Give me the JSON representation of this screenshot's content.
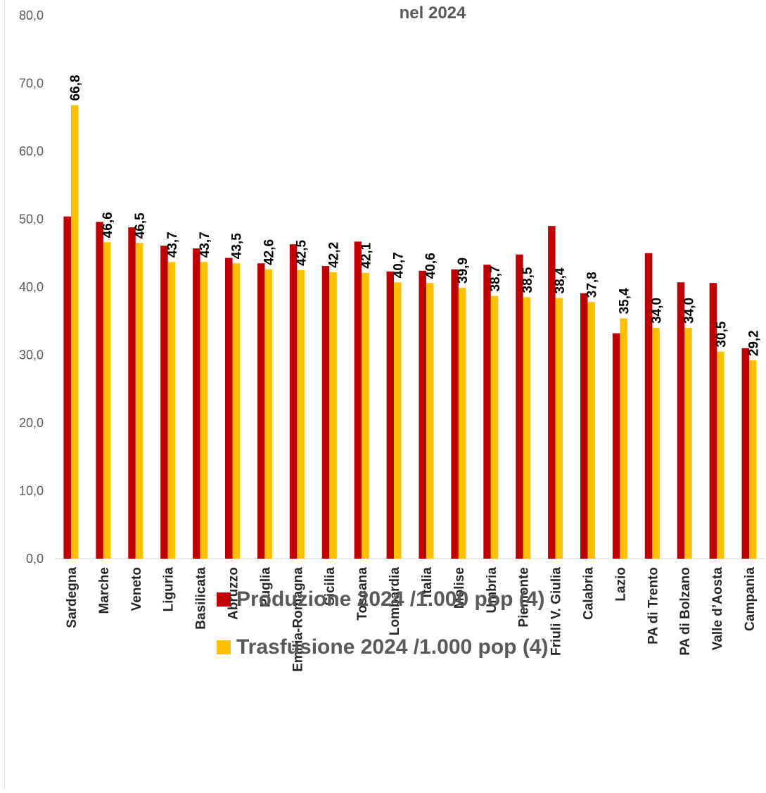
{
  "chart_data": {
    "type": "bar",
    "title": "nel 2024",
    "categories": [
      "Sardegna",
      "Marche",
      "Veneto",
      "Liguria",
      "Basilicata",
      "Abruzzo",
      "Puglia",
      "Emilia-Romagna",
      "Sicilia",
      "Toscana",
      "Lombardia",
      "Italia",
      "Molise",
      "Umbria",
      "Piemonte",
      "Friuli V. Giulia",
      "Calabria",
      "Lazio",
      "PA di Trento",
      "PA di Bolzano",
      "Valle d’Aosta",
      "Campania"
    ],
    "series": [
      {
        "name": "Produzione 2024 /1.000 pop (4)",
        "color": "#c00000",
        "values": [
          50.4,
          49.6,
          48.8,
          46.1,
          45.7,
          44.3,
          43.5,
          46.3,
          43.1,
          46.7,
          42.3,
          42.4,
          42.6,
          43.3,
          44.8,
          49.0,
          39.1,
          33.2,
          45.0,
          40.7,
          40.6,
          31.0
        ]
      },
      {
        "name": "Trasfusione 2024 /1.000 pop (4)",
        "color": "#ffc000",
        "values": [
          66.8,
          46.6,
          46.5,
          43.7,
          43.7,
          43.5,
          42.6,
          42.5,
          42.2,
          42.1,
          40.7,
          40.6,
          39.9,
          38.7,
          38.5,
          38.4,
          37.8,
          35.4,
          34.0,
          34.0,
          30.5,
          29.2
        ],
        "data_labels": [
          "66,8",
          "46,6",
          "46,5",
          "43,7",
          "43,7",
          "43,5",
          "42,6",
          "42,5",
          "42,2",
          "42,1",
          "40,7",
          "40,6",
          "39,9",
          "38,7",
          "38,5",
          "38,4",
          "37,8",
          "35,4",
          "34,0",
          "34,0",
          "30,5",
          "29,2"
        ]
      }
    ],
    "ylim": [
      0,
      80
    ],
    "yticks": [
      "0,0",
      "10,0",
      "20,0",
      "30,0",
      "40,0",
      "50,0",
      "60,0",
      "70,0",
      "80,0"
    ],
    "grid": false,
    "legend_position": "bottom"
  },
  "legend": [
    {
      "label": "Produzione 2024 /1.000 pop (4)",
      "color": "#c00000"
    },
    {
      "label": "Trasfusione 2024 /1.000 pop (4)",
      "color": "#ffc000"
    }
  ]
}
